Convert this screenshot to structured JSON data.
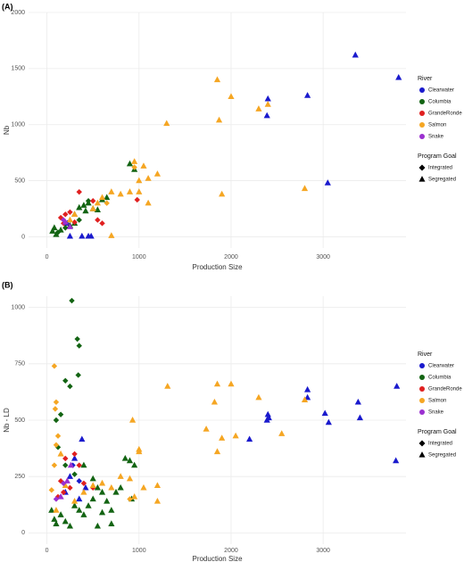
{
  "chart_data": [
    {
      "type": "scatter",
      "panel_label": "(A)",
      "xlabel": "Production Size",
      "ylabel": "Nb",
      "grid": true,
      "legend_position": "right",
      "xlim": [
        -200,
        3900
      ],
      "xticks": [
        0,
        1000,
        2000,
        3000
      ],
      "ylim": [
        -100,
        2000
      ],
      "yticks": [
        0,
        500,
        1000,
        1500,
        2000
      ],
      "legend": {
        "river_title": "River",
        "goal_title": "Program Goal",
        "goals": [
          {
            "name": "Integrated",
            "shape": "diamond"
          },
          {
            "name": "Segregated",
            "shape": "triangle"
          }
        ]
      },
      "series": [
        {
          "name": "Clearwater",
          "color": "#1a1acd",
          "diamond": {
            "x": [],
            "y": []
          },
          "triangle": {
            "x": [
              3350,
              3820,
              2400,
              2830,
              2390,
              3050,
              250,
              380,
              450,
              480,
              220
            ],
            "y": [
              1620,
              1420,
              1230,
              1260,
              1080,
              480,
              5,
              5,
              5,
              5,
              120
            ]
          }
        },
        {
          "name": "Columbia",
          "color": "#136413",
          "diamond": {
            "x": [
              120,
              200,
              350,
              450
            ],
            "y": [
              40,
              80,
              150,
              320
            ]
          },
          "triangle": {
            "x": [
              60,
              80,
              100,
              150,
              250,
              300,
              350,
              400,
              450,
              500,
              550,
              600,
              650,
              900,
              950,
              420,
              300
            ],
            "y": [
              50,
              80,
              20,
              60,
              100,
              200,
              260,
              280,
              300,
              250,
              240,
              330,
              350,
              650,
              600,
              230,
              120
            ]
          }
        },
        {
          "name": "GrandeRonde",
          "color": "#e02020",
          "diamond": {
            "x": [
              150,
              200,
              250,
              350,
              500,
              550,
              980,
              180,
              300,
              600
            ],
            "y": [
              170,
              200,
              220,
              400,
              320,
              150,
              330,
              120,
              130,
              120
            ]
          },
          "triangle": {
            "x": [],
            "y": []
          }
        },
        {
          "name": "Salmon",
          "color": "#f5a623",
          "diamond": {
            "x": [
              950,
              650
            ],
            "y": [
              620,
              300
            ]
          },
          "triangle": {
            "x": [
              1850,
              2000,
              2400,
              2300,
              1870,
              1300,
              1900,
              2800,
              950,
              1050,
              1000,
              1100,
              1200,
              900,
              1000,
              700,
              600,
              800,
              550,
              500,
              300,
              250,
              700,
              1100
            ],
            "y": [
              1400,
              1250,
              1180,
              1140,
              1040,
              1010,
              380,
              430,
              670,
              630,
              500,
              520,
              560,
              400,
              400,
              400,
              350,
              380,
              300,
              250,
              200,
              150,
              10,
              300
            ]
          }
        },
        {
          "name": "Snake",
          "color": "#9b30d0",
          "diamond": {
            "x": [
              180
            ],
            "y": [
              150
            ]
          },
          "triangle": {
            "x": [
              200,
              250
            ],
            "y": [
              130,
              90
            ]
          }
        }
      ]
    },
    {
      "type": "scatter",
      "panel_label": "(B)",
      "xlabel": "Production Size",
      "ylabel": "Nb - LD",
      "grid": true,
      "legend_position": "right",
      "xlim": [
        -200,
        3900
      ],
      "xticks": [
        0,
        1000,
        2000,
        3000
      ],
      "ylim": [
        -50,
        1050
      ],
      "yticks": [
        0,
        250,
        500,
        750,
        1000
      ],
      "legend": {
        "river_title": "River",
        "goal_title": "Program Goal",
        "goals": [
          {
            "name": "Integrated",
            "shape": "diamond"
          },
          {
            "name": "Segregated",
            "shape": "triangle"
          }
        ]
      },
      "series": [
        {
          "name": "Clearwater",
          "color": "#1a1acd",
          "diamond": {
            "x": [
              280,
              350
            ],
            "y": [
              300,
              230
            ]
          },
          "triangle": {
            "x": [
              3800,
              3380,
              3400,
              3020,
              3060,
              2830,
              2830,
              2400,
              2410,
              2390,
              2200,
              3790,
              380,
              300,
              250,
              200,
              350,
              420
            ],
            "y": [
              650,
              580,
              510,
              530,
              490,
              635,
              600,
              525,
              510,
              500,
              415,
              320,
              415,
              330,
              250,
              180,
              150,
              200
            ]
          }
        },
        {
          "name": "Columbia",
          "color": "#136413",
          "diamond": {
            "x": [
              270,
              330,
              350,
              340,
              200,
              250,
              150,
              100,
              120,
              200,
              300
            ],
            "y": [
              1030,
              860,
              830,
              700,
              675,
              650,
              525,
              500,
              380,
              300,
              260
            ]
          },
          "triangle": {
            "x": [
              50,
              80,
              100,
              150,
              200,
              250,
              300,
              350,
              400,
              450,
              500,
              550,
              600,
              650,
              700,
              750,
              800,
              850,
              900,
              950,
              920,
              400,
              500,
              600,
              550,
              700
            ],
            "y": [
              100,
              60,
              40,
              80,
              50,
              30,
              120,
              100,
              80,
              120,
              150,
              200,
              180,
              140,
              100,
              180,
              200,
              330,
              320,
              300,
              150,
              300,
              240,
              90,
              30,
              40
            ]
          }
        },
        {
          "name": "GrandeRonde",
          "color": "#e02020",
          "diamond": {
            "x": [
              200,
              300,
              350,
              150,
              180,
              250,
              400,
              500,
              120
            ],
            "y": [
              330,
              350,
              300,
              230,
              180,
              200,
              220,
              200,
              160
            ]
          },
          "triangle": {
            "x": [],
            "y": []
          }
        },
        {
          "name": "Salmon",
          "color": "#f5a623",
          "diamond": {
            "x": [
              80,
              100,
              90,
              120,
              100,
              80,
              900,
              50
            ],
            "y": [
              740,
              580,
              550,
              430,
              390,
              300,
              150,
              190
            ]
          },
          "triangle": {
            "x": [
              1310,
              1850,
              2000,
              1820,
              2300,
              2800,
              2550,
              2050,
              1900,
              1730,
              1850,
              1000,
              930,
              1200,
              1200,
              1050,
              950,
              900,
              800,
              700,
              600,
              500,
              400,
              300,
              200,
              100,
              150,
              1000
            ],
            "y": [
              650,
              660,
              660,
              580,
              600,
              590,
              440,
              430,
              420,
              460,
              360,
              370,
              500,
              210,
              140,
              200,
              160,
              240,
              250,
              200,
              220,
              210,
              180,
              140,
              210,
              100,
              350,
              360
            ]
          }
        },
        {
          "name": "Snake",
          "color": "#9b30d0",
          "diamond": {
            "x": [
              180,
              100
            ],
            "y": [
              220,
              150
            ]
          },
          "triangle": {
            "x": [
              220,
              260,
              150
            ],
            "y": [
              230,
              300,
              160
            ]
          }
        }
      ]
    }
  ]
}
